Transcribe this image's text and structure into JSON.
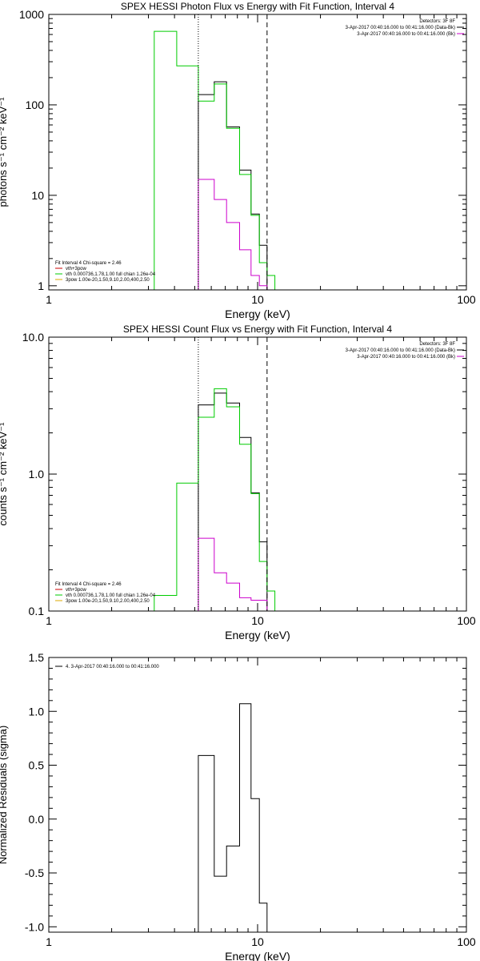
{
  "chart_data": [
    {
      "type": "line",
      "title": "SPEX HESSI Photon Flux vs Energy with Fit Function, Interval 4",
      "xlabel": "Energy (keV)",
      "ylabel": "photons s⁻¹ cm⁻² keV⁻¹",
      "xscale": "log",
      "yscale": "log",
      "xlim": [
        1,
        100
      ],
      "ylim": [
        0.9,
        1000
      ],
      "x_ticks": [
        1,
        10,
        100
      ],
      "y_ticks": [
        1,
        10,
        100,
        1000
      ],
      "x_tick_labels": [
        "1",
        "10",
        "100"
      ],
      "y_tick_labels": [
        "1",
        "10",
        "100",
        "1000"
      ],
      "info_lines": [
        "Detectors: 3F 8F",
        "3-Apr-2017 00:40:16.000 to 00:41:16.000 (Data-Bk)",
        "3-Apr-2017 00:40:16.000 to 00:41:16.000 (Bk)"
      ],
      "info_colors": [
        "#000000",
        "#000000",
        "#cc00cc"
      ],
      "legend": {
        "position": "bottom-left",
        "header": "Fit Interval  4   Chi-square = 2.46",
        "entries": [
          {
            "label": "vth+3pow",
            "color": "#cc0000"
          },
          {
            "label": "vth 0.000736,1.78,1.00   full chian 1.26e-04",
            "color": "#00cc00"
          },
          {
            "label": "3pow 1.00e-20,1.50,9.10,2.00,400,2.50",
            "color": "#ddaa00"
          }
        ]
      },
      "vlines": [
        {
          "x": 5.2,
          "style": "dotted"
        },
        {
          "x": 11.1,
          "style": "dashed"
        }
      ],
      "series": [
        {
          "color": "#000000",
          "edges": [
            5.2,
            6.2,
            7.1,
            8.2,
            9.3,
            10.2,
            11.1
          ],
          "values": [
            130,
            180,
            57,
            19,
            6.2,
            2.8
          ]
        },
        {
          "color": "#cc00cc",
          "edges": [
            5.2,
            6.2,
            7.1,
            8.2,
            9.3,
            10.2,
            11.1
          ],
          "values": [
            15,
            9,
            5,
            2.5,
            1.3,
            1.0
          ]
        },
        {
          "color": "#00cc00",
          "edges": [
            3.2,
            4.1,
            5.2,
            6.2,
            7.1,
            8.2,
            9.3,
            10.2,
            11.1,
            12.1
          ],
          "values": [
            650,
            270,
            110,
            170,
            55,
            17,
            6,
            1.8,
            1.3
          ]
        }
      ]
    },
    {
      "type": "line",
      "title": "SPEX HESSI Count Flux vs Energy with Fit Function, Interval 4",
      "xlabel": "Energy (keV)",
      "ylabel": "counts s⁻¹ cm⁻² keV⁻¹",
      "xscale": "log",
      "yscale": "log",
      "xlim": [
        1,
        100
      ],
      "ylim": [
        0.1,
        10
      ],
      "x_ticks": [
        1,
        10,
        100
      ],
      "y_ticks": [
        0.1,
        1,
        10
      ],
      "x_tick_labels": [
        "1",
        "10",
        "100"
      ],
      "y_tick_labels": [
        "0.1",
        "1.0",
        "10.0"
      ],
      "info_lines": [
        "Detectors: 3F 8F",
        "3-Apr-2017 00:40:16.000 to 00:41:16.000 (Data-Bk)",
        "3-Apr-2017 00:40:16.000 to 00:41:16.000 (Bk)"
      ],
      "info_colors": [
        "#000000",
        "#000000",
        "#cc00cc"
      ],
      "legend": {
        "position": "bottom-left",
        "header": "Fit Interval  4   Chi-square = 2.46",
        "entries": [
          {
            "label": "vth+3pow",
            "color": "#cc0000"
          },
          {
            "label": "vth 0.000736,1.78,1.00   full chian 1.26e-04",
            "color": "#00cc00"
          },
          {
            "label": "3pow 1.00e-20,1.50,9.10,2.00,400,2.50",
            "color": "#ddaa00"
          }
        ]
      },
      "vlines": [
        {
          "x": 5.2,
          "style": "dotted"
        },
        {
          "x": 11.1,
          "style": "dashed"
        }
      ],
      "series": [
        {
          "color": "#000000",
          "edges": [
            5.2,
            6.2,
            7.1,
            8.2,
            9.3,
            10.2,
            11.1
          ],
          "values": [
            3.2,
            3.9,
            3.3,
            1.85,
            0.73,
            0.32
          ]
        },
        {
          "color": "#cc00cc",
          "edges": [
            5.2,
            6.2,
            7.1,
            8.2,
            9.3,
            10.2,
            11.1
          ],
          "values": [
            0.34,
            0.19,
            0.16,
            0.125,
            0.12,
            0.12
          ]
        },
        {
          "color": "#00cc00",
          "edges": [
            3.2,
            4.1,
            5.2,
            6.2,
            7.1,
            8.2,
            9.3,
            10.2,
            11.1,
            12.1
          ],
          "values": [
            0.13,
            0.86,
            2.6,
            4.2,
            3.1,
            1.65,
            0.72,
            0.23,
            0.14
          ]
        }
      ]
    },
    {
      "type": "line",
      "title": "",
      "xlabel": "Energy (keV)",
      "ylabel": "Normalized Residuals (sigma)",
      "xscale": "log",
      "yscale": "linear",
      "xlim": [
        1,
        100
      ],
      "ylim": [
        -1.05,
        1.5
      ],
      "x_ticks": [
        1,
        10,
        100
      ],
      "y_ticks": [
        -1.0,
        -0.5,
        0.0,
        0.5,
        1.0,
        1.5
      ],
      "x_tick_labels": [
        "1",
        "10",
        "100"
      ],
      "y_tick_labels": [
        "-1.0",
        "-0.5",
        "0.0",
        "0.5",
        "1.0",
        "1.5"
      ],
      "info_lines": [],
      "info_colors": [],
      "legend": {
        "position": "top-left",
        "header": "",
        "entries": [
          {
            "label": "4.  3-Apr-2017 00:40:16.000 to 00:41:16.000",
            "color": "#000000"
          }
        ]
      },
      "vlines": [],
      "series": [
        {
          "color": "#000000",
          "edges": [
            5.2,
            6.2,
            7.1,
            8.2,
            9.3,
            10.2,
            11.1
          ],
          "values": [
            0.59,
            -0.53,
            -0.25,
            1.07,
            0.19,
            -0.78
          ]
        }
      ]
    }
  ]
}
